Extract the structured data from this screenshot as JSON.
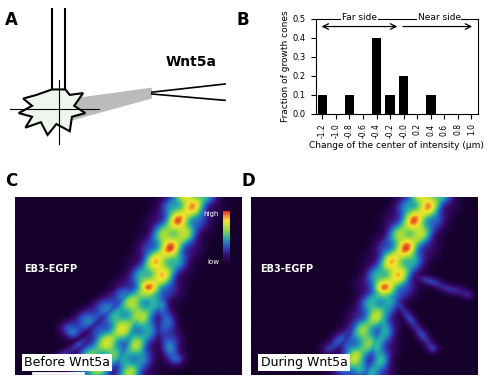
{
  "panel_labels": [
    "A",
    "B",
    "C",
    "D"
  ],
  "diagram": {
    "text": "Wnt5a"
  },
  "chart_data": {
    "type": "bar",
    "x": [
      -1.2,
      -0.8,
      -0.4,
      -0.2,
      0.0,
      0.4
    ],
    "values": [
      0.1,
      0.1,
      0.4,
      0.1,
      0.2,
      0.1
    ],
    "color": "#000000",
    "x_label": "Change of the center of intensity (µm)",
    "y_label": "Fraction of growth cones",
    "annotations": [
      "Far side",
      "Near side"
    ],
    "xlim": [
      -1.3,
      1.1
    ],
    "xticks": [
      -1.2,
      -1.0,
      -0.8,
      -0.6,
      -0.4,
      -0.2,
      {
        "value": 0,
        "label": "-0.0"
      },
      0.2,
      0.4,
      0.6,
      0.8,
      1.0
    ],
    "ylim": [
      0.0,
      0.5
    ],
    "yticks": [
      0.0,
      0.1,
      0.2,
      0.3,
      0.4,
      0.5
    ]
  },
  "images": [
    {
      "stain": "EB3-EGFP",
      "caption": "Before Wnt5a",
      "colorbar": [
        "high",
        "low"
      ]
    },
    {
      "stain": "EB3-EGFP",
      "caption": "During Wnt5a"
    }
  ]
}
